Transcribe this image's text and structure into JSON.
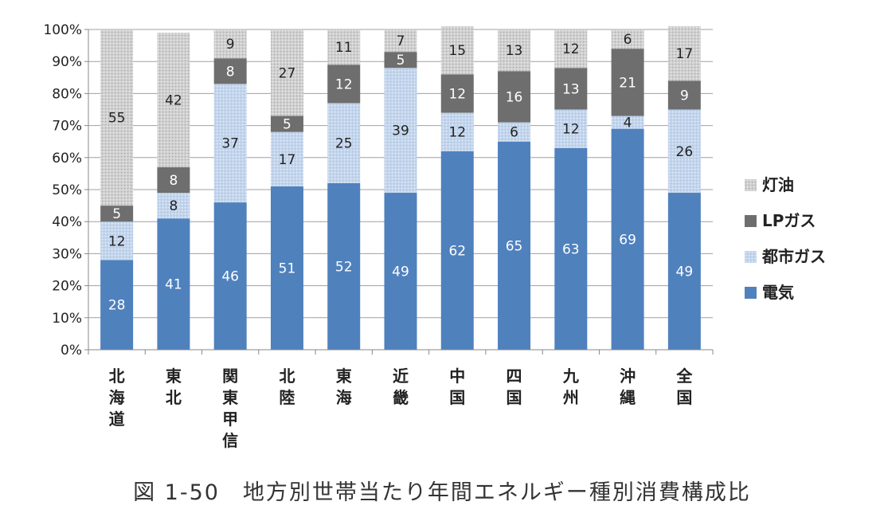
{
  "chart_data": {
    "type": "bar",
    "stacked": true,
    "title": "図 1-50　地方別世帯当たり年間エネルギー種別消費構成比",
    "xlabel": "",
    "ylabel": "",
    "ylim": [
      0,
      100
    ],
    "y_ticks": [
      "0%",
      "10%",
      "20%",
      "30%",
      "40%",
      "50%",
      "60%",
      "70%",
      "80%",
      "90%",
      "100%"
    ],
    "categories": [
      "北海道",
      "東北",
      "関東甲信",
      "北陸",
      "東海",
      "近畿",
      "中国",
      "四国",
      "九州",
      "沖縄",
      "全国"
    ],
    "series": [
      {
        "name": "電気",
        "color": "#4f81bd",
        "values": [
          28,
          41,
          46,
          51,
          52,
          49,
          62,
          65,
          63,
          69,
          49
        ]
      },
      {
        "name": "都市ガス",
        "color": "#c6d7ee",
        "values": [
          12,
          8,
          37,
          17,
          25,
          39,
          12,
          6,
          12,
          4,
          26
        ]
      },
      {
        "name": "LPガス",
        "color": "#6e6e6e",
        "values": [
          5,
          8,
          8,
          5,
          12,
          5,
          12,
          16,
          13,
          21,
          9
        ]
      },
      {
        "name": "灯油",
        "color": "#d2d2d2",
        "values": [
          55,
          42,
          9,
          27,
          11,
          7,
          15,
          13,
          12,
          6,
          17
        ]
      }
    ],
    "legend_order": [
      "灯油",
      "LPガス",
      "都市ガス",
      "電気"
    ],
    "legend_position": "right",
    "grid": true
  }
}
